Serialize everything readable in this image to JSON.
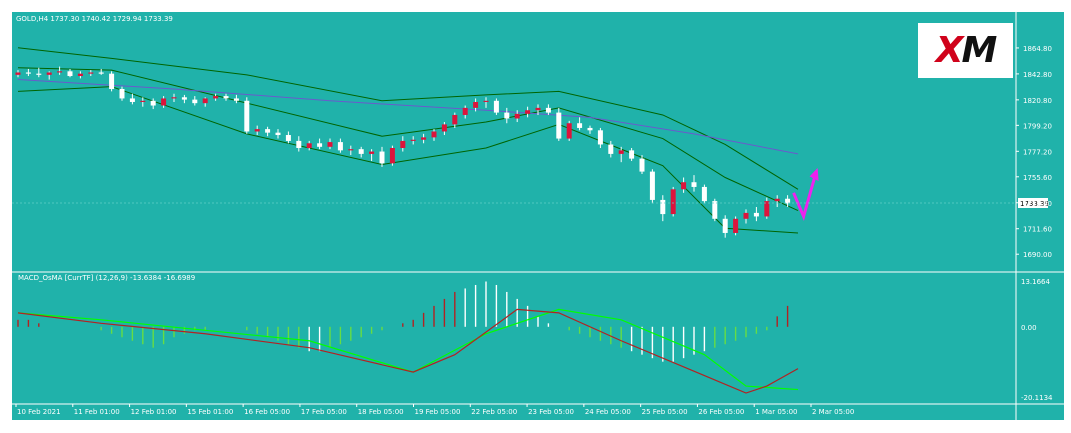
{
  "header": {
    "symbol_line": "GOLD,H4  1737.30 1740.42 1729.94 1733.39"
  },
  "logo": {
    "text_red": "X",
    "text_black": "M"
  },
  "indicator": {
    "label": "MACD_OsMA [CurrTF] (12,26,9) -13.6384 -16.6989"
  },
  "colors": {
    "background": "#20b2aa",
    "bull_candle": "#dc143c",
    "bear_candle": "#ffffff",
    "band": "#006400",
    "slow_ma": "#6a5acd",
    "macd_line": "#b22222",
    "signal_line": "#00ff00",
    "hist_up": "#b22222",
    "hist_down": "#ffffff",
    "hist_green": "#66dd44",
    "arrow": "#ee22ee",
    "price_marker": "#ffffff"
  },
  "chart_data": [
    {
      "type": "candlestick",
      "title": "GOLD,H4",
      "ylim": [
        1680,
        1880
      ],
      "price_ticks": [
        "1864.80",
        "1842.80",
        "1820.80",
        "1799.20",
        "1777.20",
        "1755.60",
        "1733.60",
        "1711.60",
        "1690.00"
      ],
      "current_price": "1733.39",
      "x_labels": [
        "10 Feb 2021",
        "11 Feb 01:00",
        "12 Feb 01:00",
        "15 Feb 01:00",
        "16 Feb 05:00",
        "17 Feb 05:00",
        "18 Feb 05:00",
        "19 Feb 05:00",
        "22 Feb 05:00",
        "23 Feb 05:00",
        "24 Feb 05:00",
        "25 Feb 05:00",
        "26 Feb 05:00",
        "1 Mar 05:00",
        "2 Mar 05:00"
      ],
      "candles": [
        [
          1842,
          1846,
          1840,
          1844
        ],
        [
          1844,
          1847,
          1841,
          1843
        ],
        [
          1843,
          1848,
          1840,
          1842
        ],
        [
          1842,
          1845,
          1838,
          1844
        ],
        [
          1844,
          1849,
          1842,
          1845
        ],
        [
          1845,
          1847,
          1840,
          1841
        ],
        [
          1841,
          1845,
          1839,
          1843
        ],
        [
          1843,
          1846,
          1841,
          1844
        ],
        [
          1844,
          1847,
          1842,
          1843
        ],
        [
          1843,
          1845,
          1828,
          1830
        ],
        [
          1830,
          1832,
          1820,
          1822
        ],
        [
          1822,
          1826,
          1817,
          1819
        ],
        [
          1819,
          1823,
          1815,
          1820
        ],
        [
          1820,
          1822,
          1813,
          1816
        ],
        [
          1816,
          1824,
          1814,
          1822
        ],
        [
          1822,
          1826,
          1819,
          1823
        ],
        [
          1823,
          1825,
          1818,
          1821
        ],
        [
          1821,
          1824,
          1816,
          1818
        ],
        [
          1818,
          1823,
          1815,
          1822
        ],
        [
          1822,
          1826,
          1820,
          1824
        ],
        [
          1824,
          1826,
          1820,
          1822
        ],
        [
          1822,
          1825,
          1818,
          1820
        ],
        [
          1820,
          1823,
          1792,
          1794
        ],
        [
          1794,
          1799,
          1791,
          1796
        ],
        [
          1796,
          1798,
          1790,
          1793
        ],
        [
          1793,
          1796,
          1788,
          1791
        ],
        [
          1791,
          1794,
          1784,
          1786
        ],
        [
          1786,
          1790,
          1777,
          1780
        ],
        [
          1780,
          1786,
          1778,
          1784
        ],
        [
          1784,
          1788,
          1779,
          1781
        ],
        [
          1781,
          1788,
          1779,
          1785
        ],
        [
          1785,
          1788,
          1776,
          1778
        ],
        [
          1778,
          1782,
          1774,
          1779
        ],
        [
          1779,
          1781,
          1772,
          1775
        ],
        [
          1775,
          1779,
          1769,
          1777
        ],
        [
          1777,
          1781,
          1764,
          1767
        ],
        [
          1767,
          1782,
          1765,
          1780
        ],
        [
          1780,
          1790,
          1777,
          1786
        ],
        [
          1786,
          1790,
          1783,
          1787
        ],
        [
          1787,
          1792,
          1784,
          1789
        ],
        [
          1789,
          1796,
          1786,
          1794
        ],
        [
          1794,
          1802,
          1791,
          1800
        ],
        [
          1800,
          1810,
          1797,
          1808
        ],
        [
          1808,
          1816,
          1805,
          1814
        ],
        [
          1814,
          1822,
          1811,
          1819
        ],
        [
          1819,
          1823,
          1814,
          1820
        ],
        [
          1820,
          1822,
          1808,
          1810
        ],
        [
          1810,
          1814,
          1801,
          1805
        ],
        [
          1805,
          1812,
          1802,
          1809
        ],
        [
          1809,
          1815,
          1806,
          1812
        ],
        [
          1812,
          1817,
          1808,
          1814
        ],
        [
          1814,
          1817,
          1808,
          1810
        ],
        [
          1810,
          1814,
          1786,
          1788
        ],
        [
          1788,
          1803,
          1786,
          1801
        ],
        [
          1801,
          1806,
          1795,
          1797
        ],
        [
          1797,
          1799,
          1792,
          1795
        ],
        [
          1795,
          1797,
          1780,
          1783
        ],
        [
          1783,
          1786,
          1772,
          1775
        ],
        [
          1775,
          1781,
          1768,
          1778
        ],
        [
          1778,
          1780,
          1769,
          1771
        ],
        [
          1771,
          1774,
          1758,
          1760
        ],
        [
          1760,
          1762,
          1733,
          1736
        ],
        [
          1736,
          1740,
          1718,
          1724
        ],
        [
          1724,
          1747,
          1722,
          1745
        ],
        [
          1745,
          1755,
          1742,
          1751
        ],
        [
          1751,
          1757,
          1743,
          1747
        ],
        [
          1747,
          1749,
          1733,
          1735
        ],
        [
          1735,
          1737,
          1718,
          1720
        ],
        [
          1720,
          1723,
          1704,
          1708
        ],
        [
          1708,
          1722,
          1706,
          1720
        ],
        [
          1720,
          1728,
          1716,
          1725
        ],
        [
          1725,
          1730,
          1718,
          1722
        ],
        [
          1722,
          1738,
          1720,
          1735
        ],
        [
          1735,
          1740,
          1730,
          1737
        ],
        [
          1737,
          1740,
          1730,
          1733
        ]
      ],
      "bands": {
        "upper": [
          [
            0,
            1865
          ],
          [
            9,
            1856
          ],
          [
            22,
            1842
          ],
          [
            35,
            1820
          ],
          [
            45,
            1825
          ],
          [
            52,
            1828
          ],
          [
            62,
            1808
          ],
          [
            68,
            1783
          ],
          [
            75,
            1745
          ]
        ],
        "middle": [
          [
            0,
            1848
          ],
          [
            9,
            1846
          ],
          [
            22,
            1818
          ],
          [
            35,
            1790
          ],
          [
            45,
            1802
          ],
          [
            52,
            1814
          ],
          [
            62,
            1788
          ],
          [
            68,
            1755
          ],
          [
            75,
            1727
          ]
        ],
        "lower": [
          [
            0,
            1828
          ],
          [
            9,
            1832
          ],
          [
            22,
            1792
          ],
          [
            35,
            1766
          ],
          [
            45,
            1780
          ],
          [
            52,
            1800
          ],
          [
            62,
            1765
          ],
          [
            68,
            1712
          ],
          [
            75,
            1708
          ]
        ]
      },
      "slow_ma": [
        [
          0,
          1838
        ],
        [
          15,
          1830
        ],
        [
          30,
          1820
        ],
        [
          45,
          1812
        ],
        [
          55,
          1806
        ],
        [
          65,
          1792
        ],
        [
          75,
          1775
        ]
      ],
      "signal": "V-shaped arrow pointing up"
    },
    {
      "type": "macd",
      "title": "MACD_OsMA [CurrTF] (12,26,9)",
      "values_label": "-13.6384 -16.6989",
      "ylim": [
        -21,
        14
      ],
      "ticks": [
        "13.1664",
        "0.00",
        "-20.1134"
      ],
      "histogram": [
        2,
        2,
        1,
        0,
        0,
        0,
        0,
        0,
        -1,
        -2,
        -3,
        -4,
        -5,
        -6,
        -5,
        -3,
        -2,
        -1,
        -1,
        0,
        0,
        0,
        -1,
        -2,
        -3,
        -4,
        -5,
        -6,
        -7,
        -7,
        -6,
        -5,
        -4,
        -3,
        -2,
        -1,
        0,
        1,
        2,
        4,
        6,
        8,
        10,
        11,
        12,
        13,
        12,
        10,
        8,
        6,
        3,
        1,
        0,
        -1,
        -2,
        -3,
        -4,
        -5,
        -6,
        -7,
        -8,
        -9,
        -10,
        -10,
        -9,
        -8,
        -7,
        -6,
        -5,
        -4,
        -3,
        -2,
        -1,
        3,
        6
      ],
      "macd": [
        [
          0,
          4
        ],
        [
          8,
          1
        ],
        [
          18,
          -2
        ],
        [
          28,
          -6
        ],
        [
          38,
          -13
        ],
        [
          42,
          -8
        ],
        [
          48,
          5
        ],
        [
          52,
          4
        ],
        [
          58,
          -4
        ],
        [
          66,
          -14
        ],
        [
          70,
          -19
        ],
        [
          72,
          -17
        ],
        [
          75,
          -12
        ]
      ],
      "signal_line": [
        [
          0,
          4
        ],
        [
          8,
          2
        ],
        [
          18,
          -1
        ],
        [
          28,
          -4
        ],
        [
          38,
          -13
        ],
        [
          45,
          -2
        ],
        [
          52,
          5
        ],
        [
          58,
          2
        ],
        [
          66,
          -8
        ],
        [
          70,
          -17
        ],
        [
          75,
          -18
        ]
      ]
    }
  ]
}
